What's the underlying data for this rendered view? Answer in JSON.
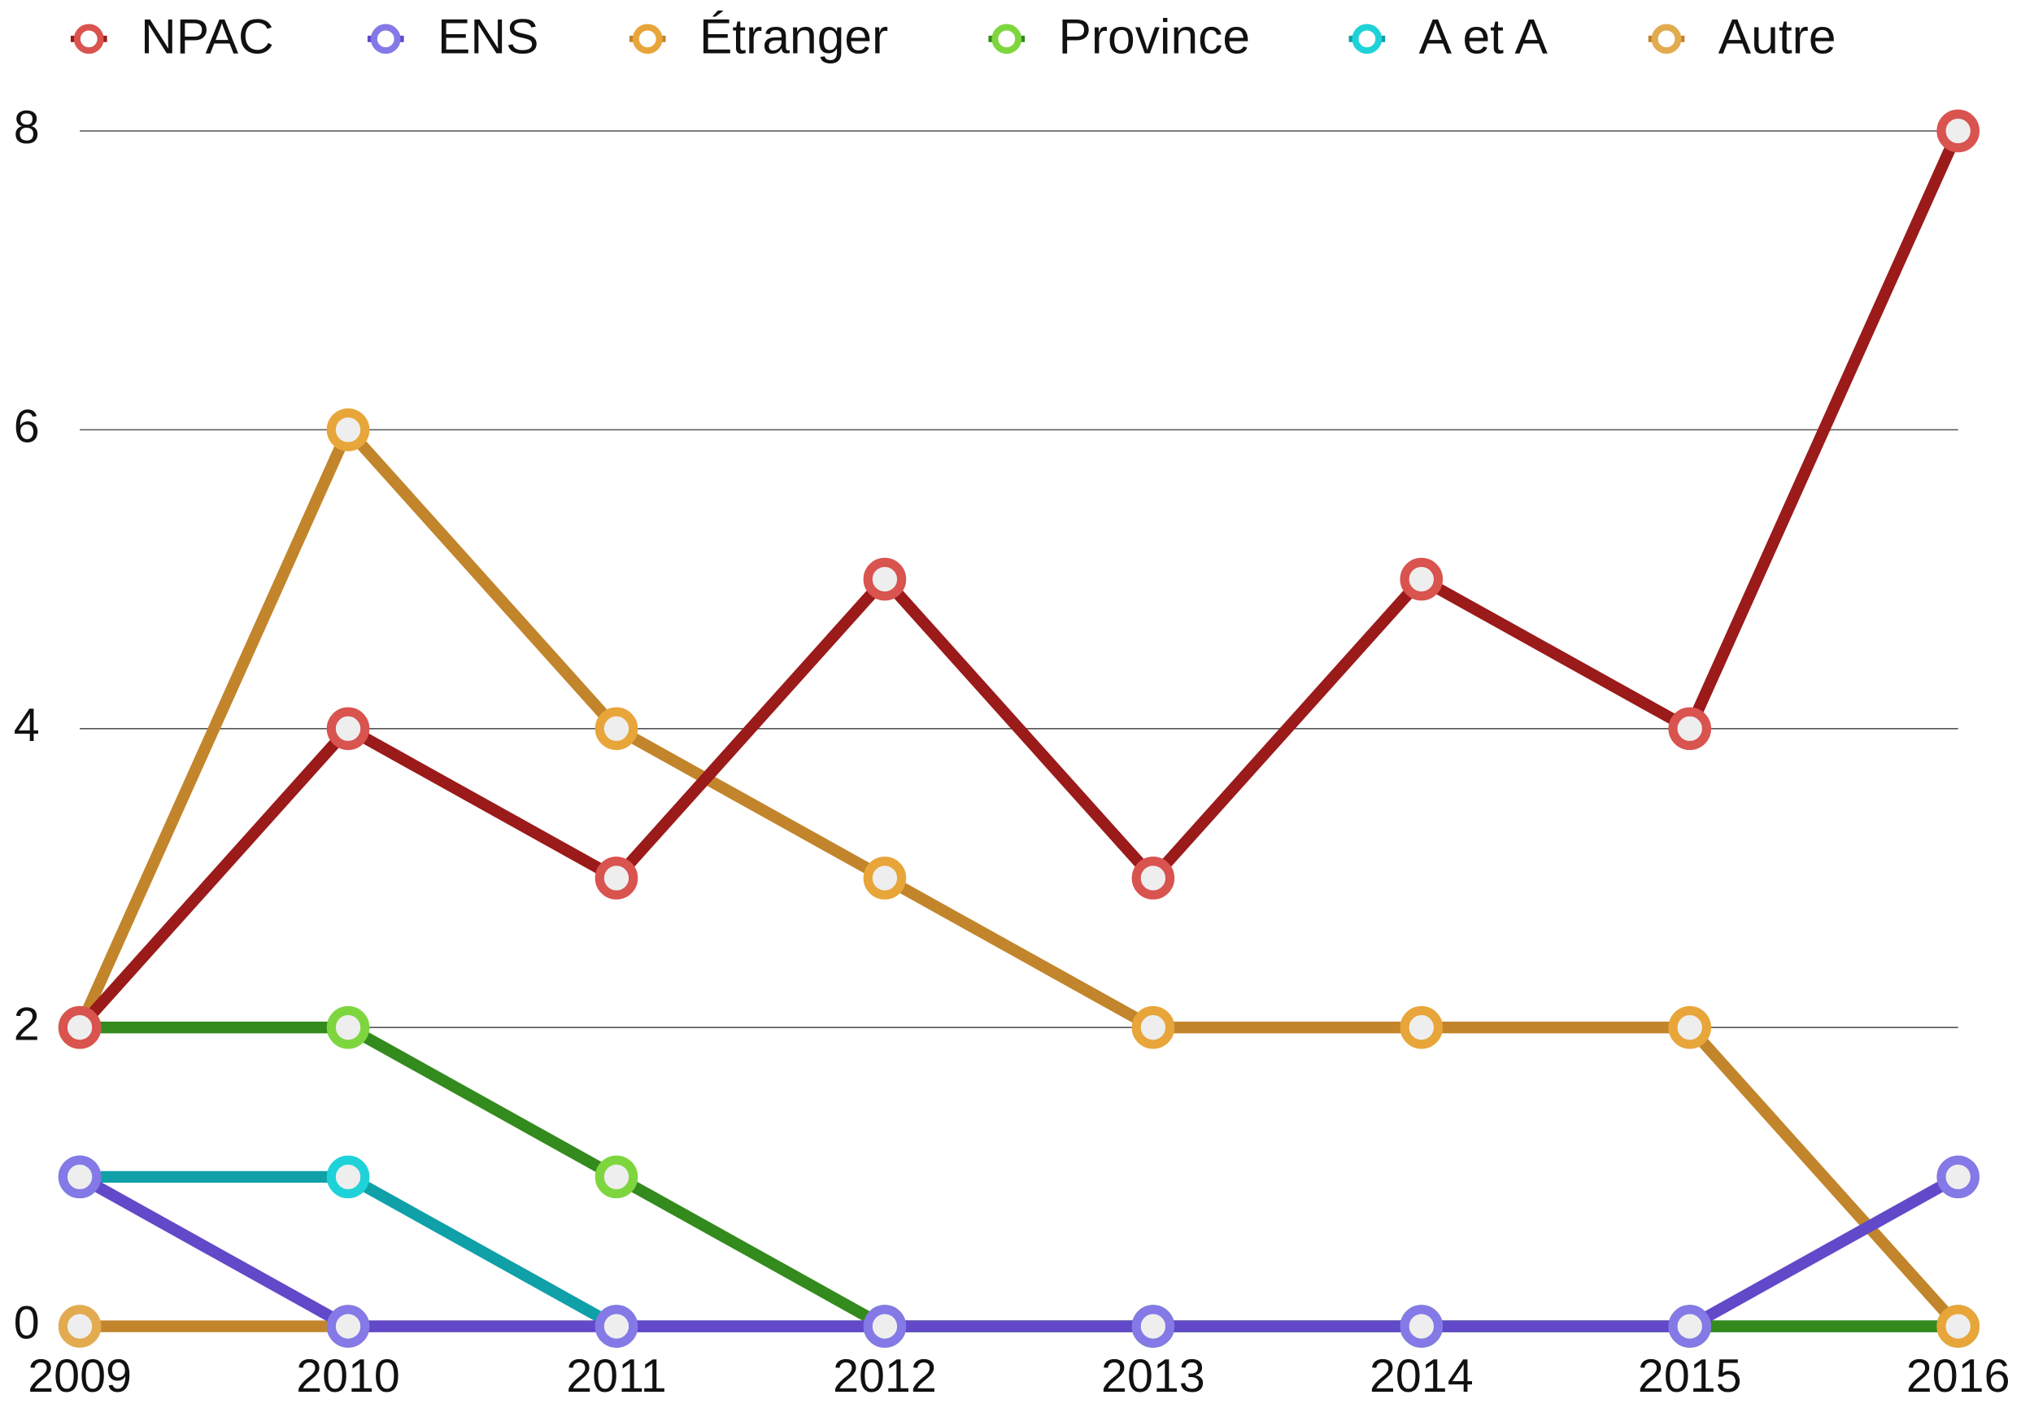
{
  "chart_data": {
    "type": "line",
    "x": [
      2009,
      2010,
      2011,
      2012,
      2013,
      2014,
      2015,
      2016
    ],
    "xlim": [
      2009,
      2016
    ],
    "xticks": [
      2009,
      2010,
      2011,
      2012,
      2013,
      2014,
      2015,
      2016
    ],
    "ylim": [
      0,
      8
    ],
    "yticks": [
      0,
      2,
      4,
      6,
      8
    ],
    "grid": true,
    "legend": "top",
    "series": [
      {
        "name": "NPAC",
        "color": "#d9534f",
        "line_color": "#9b1a1a",
        "values": [
          2,
          4,
          3,
          5,
          3,
          5,
          4,
          8
        ]
      },
      {
        "name": "ENS",
        "color": "#8479e6",
        "line_color": "#6149c9",
        "values": [
          1,
          0,
          0,
          0,
          0,
          0,
          0,
          1
        ]
      },
      {
        "name": "Étranger",
        "color": "#e8a53a",
        "line_color": "#c2852b",
        "values": [
          2,
          6,
          4,
          3,
          2,
          2,
          2,
          0
        ]
      },
      {
        "name": "Province",
        "color": "#7ed63f",
        "line_color": "#338a1d",
        "values": [
          2,
          2,
          1,
          0,
          0,
          0,
          0,
          0
        ]
      },
      {
        "name": "A et A",
        "color": "#1fd2d8",
        "line_color": "#0fa0a8",
        "values": [
          1,
          1,
          0,
          0,
          0,
          0,
          0,
          0
        ]
      },
      {
        "name": "Autre",
        "color": "#e2ab50",
        "line_color": "#c2852b",
        "values": [
          0,
          0,
          0,
          0,
          0,
          0,
          0,
          0
        ]
      }
    ]
  }
}
